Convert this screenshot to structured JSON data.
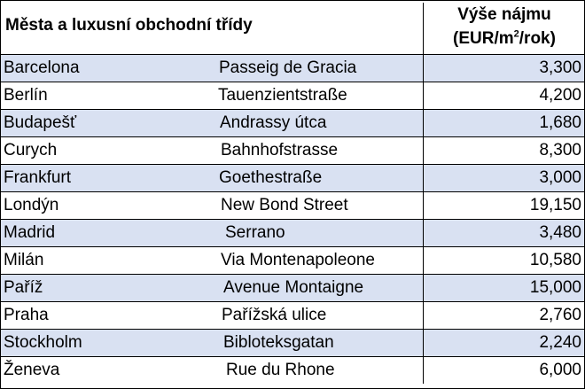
{
  "header": {
    "title": "Města a luxusní obchodní třídy",
    "rent_line1": "Výše nájmu",
    "rent_line2_before": "(EUR/m",
    "rent_line2_sup": "2",
    "rent_line2_after": "/rok)"
  },
  "rows": [
    {
      "city": "Barcelona",
      "street": "Passeig de Gracia",
      "rent": "3,300"
    },
    {
      "city": "Berlín",
      "street": "Tauenzientstraße",
      "rent": "4,200"
    },
    {
      "city": "Budapešť",
      "street": "Andrassy útca",
      "rent": "1,680"
    },
    {
      "city": "Curych",
      "street": "Bahnhofstrasse",
      "rent": "8,300"
    },
    {
      "city": "Frankfurt",
      "street": "Goethestraße",
      "rent": "3,000"
    },
    {
      "city": "Londýn",
      "street": "New Bond Street",
      "rent": "19,150"
    },
    {
      "city": "Madrid",
      "street": "Serrano",
      "rent": "3,480"
    },
    {
      "city": "Milán",
      "street": "Via Montenapoleone",
      "rent": "10,580"
    },
    {
      "city": "Paříž",
      "street": "Avenue Montaigne",
      "rent": "15,000"
    },
    {
      "city": "Praha",
      "street": "Pařížská ulice",
      "rent": "2,760"
    },
    {
      "city": "Stockholm",
      "street": "Bibloteksgatan",
      "rent": "2,240"
    },
    {
      "city": "Ženeva",
      "street": "Rue du Rhone",
      "rent": "6,000"
    }
  ],
  "colors": {
    "shaded_row": "#d9e1f2",
    "grid_line": "#000000"
  }
}
